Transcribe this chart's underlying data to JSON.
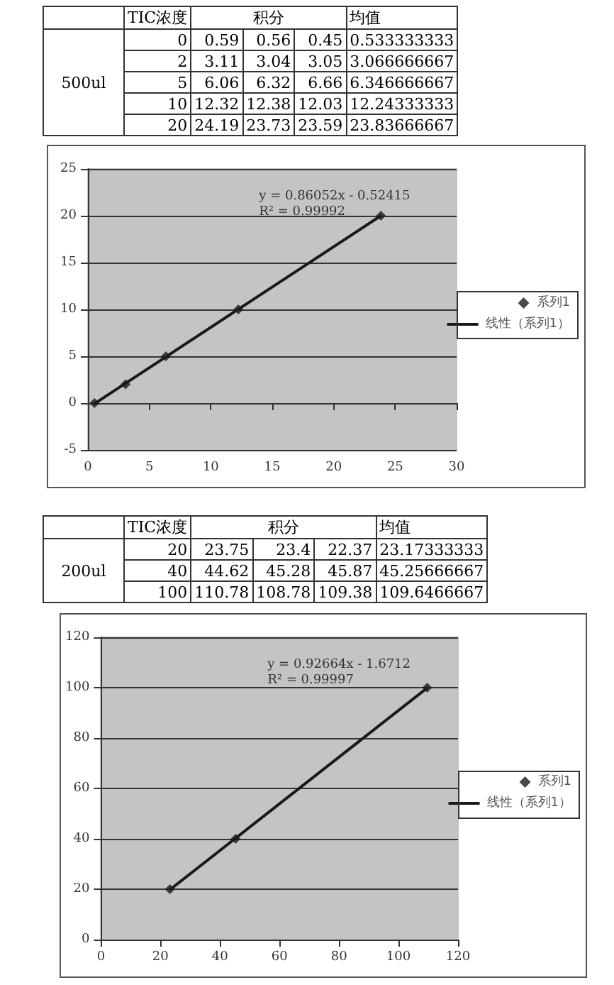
{
  "chart_data": [
    {
      "type": "other",
      "annotations": [
        "TIC浓度",
        "积分",
        "均值",
        "500ul",
        "0",
        "0.59",
        "0.56",
        "0.45",
        "0.533333333",
        "2",
        "3.11",
        "3.04",
        "3.05",
        "3.066666667",
        "5",
        "6.06",
        "6.32",
        "6.66",
        "6.346666667",
        "10",
        "12.32",
        "12.38",
        "12.03",
        "12.24333333",
        "20",
        "24.19",
        "23.73",
        "23.59",
        "23.83666667"
      ]
    },
    {
      "type": "scatter",
      "grid": "y",
      "legend": "right",
      "xlim": [
        0,
        30
      ],
      "xticks": [
        0,
        5,
        10,
        15,
        20,
        25,
        30
      ],
      "ylim": [
        -5,
        25
      ],
      "yticks": [
        -5,
        0,
        5,
        10,
        15,
        20,
        25
      ],
      "annotations": [
        "y = 0.86052x - 0.52415",
        "R² = 0.99992"
      ],
      "series": [
        {
          "name": "系列1",
          "type": "scatter",
          "marker": "diamond",
          "color": "#1a1a1a",
          "x": [
            0.533333333,
            3.066666667,
            6.346666667,
            12.24333333,
            23.83666667
          ],
          "values": [
            0,
            2,
            5,
            10,
            20
          ]
        },
        {
          "name": "线性（系列1）",
          "type": "line",
          "marker": "none",
          "color": "#1a1a1a",
          "x": [
            0.533333333,
            23.83666667
          ],
          "values": [
            -0.07,
            20.0
          ]
        }
      ]
    },
    {
      "type": "other",
      "annotations": [
        "TIC浓度",
        "积分",
        "均值",
        "200ul",
        "20",
        "23.75",
        "23.4",
        "22.37",
        "23.17333333",
        "40",
        "44.62",
        "45.28",
        "45.87",
        "45.25666667",
        "100",
        "110.78",
        "108.78",
        "109.38",
        "109.6466667"
      ]
    },
    {
      "type": "scatter",
      "grid": "y",
      "legend": "right",
      "xlim": [
        0,
        120
      ],
      "xticks": [
        0,
        20,
        40,
        60,
        80,
        100,
        120
      ],
      "ylim": [
        0,
        120
      ],
      "yticks": [
        0,
        20,
        40,
        60,
        80,
        100,
        120
      ],
      "annotations": [
        "y = 0.92664x - 1.6712",
        "R² = 0.99997"
      ],
      "series": [
        {
          "name": "系列1",
          "type": "scatter",
          "marker": "diamond",
          "color": "#1a1a1a",
          "x": [
            23.17333333,
            45.25666667,
            109.6466667
          ],
          "values": [
            20,
            40,
            100
          ]
        },
        {
          "name": "线性（系列1）",
          "type": "line",
          "marker": "none",
          "color": "#1a1a1a",
          "x": [
            23.17333333,
            109.6466667
          ],
          "values": [
            19.8,
            99.9
          ]
        }
      ]
    }
  ]
}
